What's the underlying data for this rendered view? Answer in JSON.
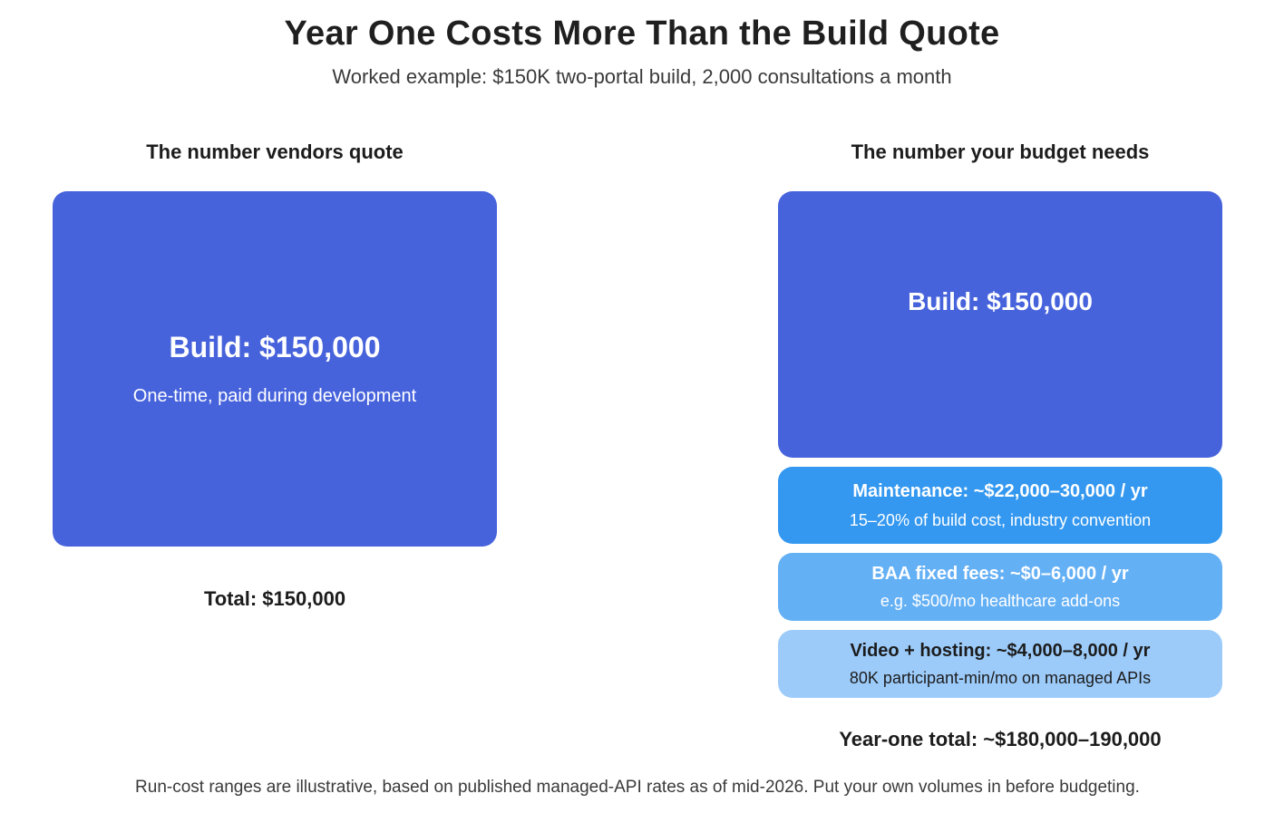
{
  "title": "Year One Costs More Than the Build Quote",
  "subtitle": "Worked example: $150K two-portal build, 2,000 consultations a month",
  "left_column": {
    "heading": "The number vendors quote",
    "build": {
      "label": "Build: $150,000",
      "sub": "One-time, paid during development",
      "color": "#4763dc"
    },
    "total": "Total: $150,000"
  },
  "right_column": {
    "heading": "The number your budget needs",
    "blocks": [
      {
        "label": "Build: $150,000",
        "sub": "",
        "color": "#4763dc"
      },
      {
        "label": "Maintenance: ~$22,000–30,000 / yr",
        "sub": "15–20% of build cost, industry convention",
        "color": "#3498f0"
      },
      {
        "label": "BAA fixed fees: ~$0–6,000 / yr",
        "sub": "e.g. $500/mo healthcare add-ons",
        "color": "#64b0f5"
      },
      {
        "label": "Video + hosting: ~$4,000–8,000 / yr",
        "sub": "80K participant-min/mo on managed APIs",
        "color": "#9ccbfa"
      }
    ],
    "total": "Year-one total: ~$180,000–190,000"
  },
  "footnote": "Run-cost ranges are illustrative, based on published managed-API rates as of mid-2026. Put your own volumes in before budgeting."
}
